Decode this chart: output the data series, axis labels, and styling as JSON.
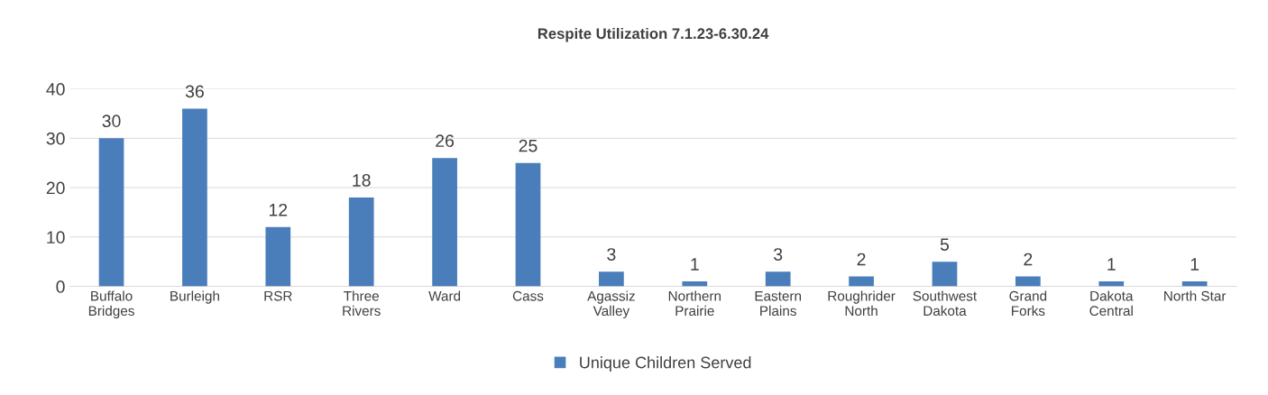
{
  "chart_data": {
    "type": "bar",
    "title": "Respite Utilization 7.1.23-6.30.24",
    "categories": [
      "Buffalo\nBridges",
      "Burleigh",
      "RSR",
      "Three\nRivers",
      "Ward",
      "Cass",
      "Agassiz\nValley",
      "Northern\nPrairie",
      "Eastern\nPlains",
      "Roughrider\nNorth",
      "Southwest\nDakota",
      "Grand\nForks",
      "Dakota\nCentral",
      "North Star"
    ],
    "series": [
      {
        "name": "Unique Children Served",
        "color": "#4a7ebb",
        "values": [
          30,
          36,
          12,
          18,
          26,
          25,
          3,
          1,
          3,
          2,
          5,
          2,
          1,
          1
        ]
      }
    ],
    "ylim": [
      0,
      40
    ],
    "yticks": [
      0,
      10,
      20,
      30,
      40
    ],
    "grid": "y",
    "legend": "bottom",
    "data_labels": true
  }
}
